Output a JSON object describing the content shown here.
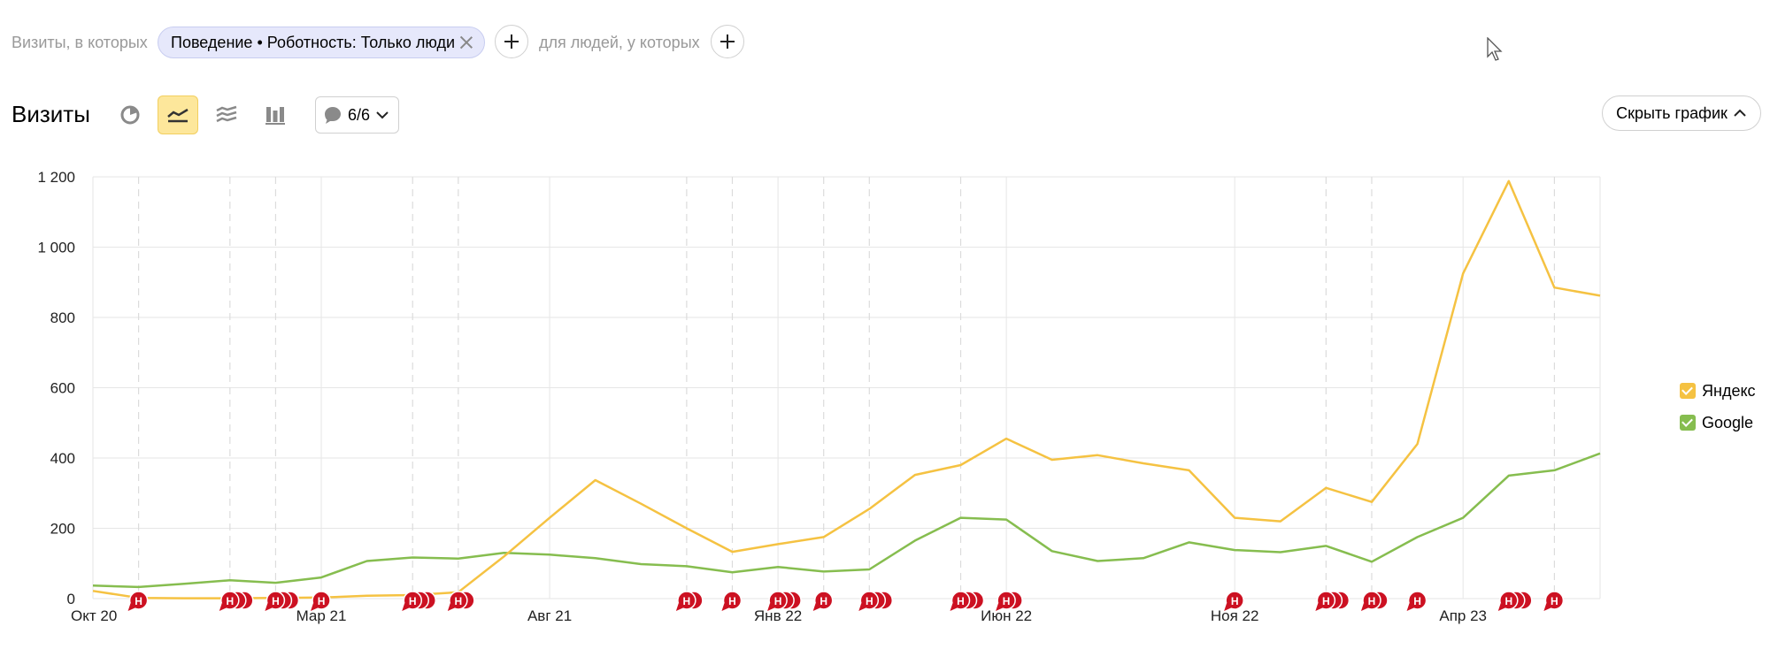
{
  "filters": {
    "visits_label": "Визиты, в которых",
    "chip_label": "Поведение • Роботность: Только люди",
    "people_label": "для людей, у которых"
  },
  "toolbar": {
    "title": "Визиты",
    "comments_count": "6/6",
    "hide_chart_label": "Скрыть график",
    "icons": [
      "pie-chart-icon",
      "line-chart-icon",
      "area-chart-icon",
      "bar-chart-icon",
      "comment-icon"
    ]
  },
  "colors": {
    "yandex": "#f5c242",
    "google": "#86bd4f",
    "note_marker": "#cc1122",
    "active_button": "#fde79b"
  },
  "chart_data": {
    "type": "line",
    "y_ticks": [
      "0",
      "200",
      "400",
      "600",
      "800",
      "1 000",
      "1 200"
    ],
    "ylim": [
      0,
      1200
    ],
    "x_labels": [
      "Окт 20",
      "Мар 21",
      "Авг 21",
      "Янв 22",
      "Июн 22",
      "Ноя 22",
      "Апр 23"
    ],
    "x_label_index": [
      0,
      5,
      10,
      15,
      20,
      25,
      30
    ],
    "x_count": 34,
    "series": [
      {
        "name": "Яндекс",
        "color_key": "yandex",
        "values": [
          22,
          2,
          1,
          1,
          2,
          3,
          8,
          10,
          18,
          120,
          230,
          337,
          270,
          200,
          133,
          155,
          175,
          255,
          352,
          380,
          455,
          395,
          408,
          385,
          365,
          230,
          220,
          315,
          275,
          440,
          925,
          1188,
          885,
          862
        ]
      },
      {
        "name": "Google",
        "color_key": "google",
        "values": [
          37,
          33,
          42,
          52,
          45,
          60,
          107,
          117,
          114,
          130,
          125,
          115,
          98,
          92,
          75,
          90,
          77,
          83,
          165,
          230,
          225,
          135,
          107,
          115,
          160,
          138,
          132,
          150,
          105,
          175,
          230,
          350,
          365,
          413
        ]
      }
    ],
    "note_markers": [
      {
        "i": 1,
        "n": 1
      },
      {
        "i": 3,
        "n": 3
      },
      {
        "i": 4,
        "n": 3
      },
      {
        "i": 5,
        "n": 1
      },
      {
        "i": 7,
        "n": 3
      },
      {
        "i": 8,
        "n": 2
      },
      {
        "i": 13,
        "n": 2
      },
      {
        "i": 14,
        "n": 1
      },
      {
        "i": 15,
        "n": 3
      },
      {
        "i": 16,
        "n": 1
      },
      {
        "i": 17,
        "n": 3
      },
      {
        "i": 19,
        "n": 3
      },
      {
        "i": 20,
        "n": 2
      },
      {
        "i": 25,
        "n": 1
      },
      {
        "i": 27,
        "n": 3
      },
      {
        "i": 28,
        "n": 2
      },
      {
        "i": 29,
        "n": 1
      },
      {
        "i": 31,
        "n": 3
      },
      {
        "i": 32,
        "n": 1
      }
    ],
    "note_marker_label": "Н",
    "dashed_x_index": [
      1,
      3,
      4,
      7,
      8,
      13,
      14,
      16,
      17,
      19,
      27,
      28,
      32
    ],
    "legend": [
      "Яндекс",
      "Google"
    ],
    "legend_position": "right",
    "grid": true
  }
}
